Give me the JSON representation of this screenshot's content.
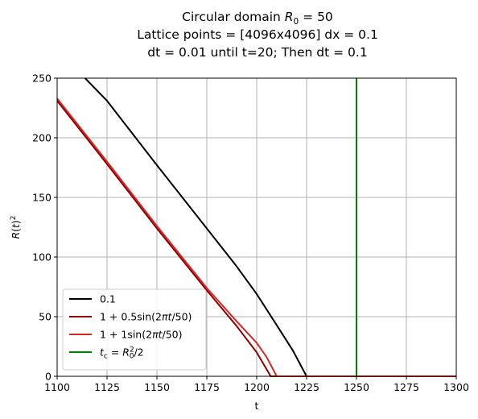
{
  "chart_data": {
    "type": "line",
    "title_lines": [
      "Circular domain R₀ = 50",
      "Lattice points = [4096x4096] dx = 0.1",
      "dt = 0.01 until t=20; Then dt = 0.1"
    ],
    "xlabel": "t",
    "ylabel": "R(t)²",
    "xlim": [
      1100,
      1300
    ],
    "ylim": [
      0,
      250
    ],
    "xticks": [
      1100,
      1125,
      1150,
      1175,
      1200,
      1225,
      1250,
      1275,
      1300
    ],
    "yticks": [
      0,
      50,
      100,
      150,
      200,
      250
    ],
    "grid": true,
    "legend_position": "lower-left",
    "series": [
      {
        "name": "0.1",
        "color": "#000000",
        "x": [
          1114,
          1125,
          1150,
          1175,
          1190,
          1200,
          1210,
          1218,
          1225,
          1300
        ],
        "y": [
          250,
          231,
          177,
          124,
          92,
          69,
          43,
          22,
          0,
          0
        ]
      },
      {
        "name": "1 + 0.5sin(2πt/50)",
        "color": "#8b0000",
        "x": [
          1100,
          1125,
          1150,
          1175,
          1190,
          1200,
          1207,
          1300
        ],
        "y": [
          231,
          178,
          124,
          72,
          42,
          20,
          0,
          0
        ]
      },
      {
        "name": "1 + 1sin(2πt/50)",
        "color": "#d62728",
        "x": [
          1100,
          1125,
          1150,
          1175,
          1190,
          1200,
          1205,
          1210,
          1300
        ],
        "y": [
          233,
          180,
          126,
          74,
          46,
          28,
          16,
          0,
          0
        ]
      },
      {
        "name": "t_c = R₀²/2",
        "color": "#008000",
        "x": [
          1250,
          1250
        ],
        "y": [
          0,
          250
        ]
      }
    ]
  }
}
